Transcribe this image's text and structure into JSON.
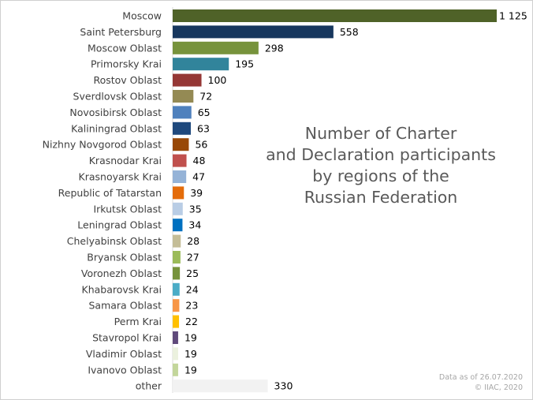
{
  "chart_data": {
    "type": "bar",
    "orientation": "horizontal",
    "title": "Number of Charter and Declaration participants by regions of the Russian Federation",
    "title_lines": [
      "Number of Charter",
      "and Declaration participants",
      "by regions of the",
      "Russian Federation"
    ],
    "categories": [
      "Moscow",
      "Saint Petersburg",
      "Moscow Oblast",
      "Primorsky Krai",
      "Rostov Oblast",
      "Sverdlovsk Oblast",
      "Novosibirsk Oblast",
      "Kaliningrad Oblast",
      "Nizhny Novgorod Oblast",
      "Krasnodar Krai",
      "Krasnoyarsk Krai",
      "Republic of Tatarstan",
      "Irkutsk Oblast",
      "Leningrad Oblast",
      "Chelyabinsk Oblast",
      "Bryansk Oblast",
      "Voronezh Oblast",
      "Khabarovsk Krai",
      "Samara Oblast",
      "Perm Krai",
      "Stavropol Krai",
      "Vladimir Oblast",
      "Ivanovo Oblast",
      "other"
    ],
    "values": [
      1125,
      558,
      298,
      195,
      100,
      72,
      65,
      63,
      56,
      48,
      47,
      39,
      35,
      34,
      28,
      27,
      25,
      24,
      23,
      22,
      19,
      19,
      19,
      330
    ],
    "value_labels": [
      "1 125",
      "558",
      "298",
      "195",
      "100",
      "72",
      "65",
      "63",
      "56",
      "48",
      "47",
      "39",
      "35",
      "34",
      "28",
      "27",
      "25",
      "24",
      "23",
      "22",
      "19",
      "19",
      "19",
      "330"
    ],
    "colors": [
      "#4f6228",
      "#17375e",
      "#77933c",
      "#31849b",
      "#953735",
      "#948a54",
      "#4f81bd",
      "#1f497d",
      "#984807",
      "#c0504d",
      "#95b3d7",
      "#e46c0a",
      "#b9cde5",
      "#0070c0",
      "#c4bd97",
      "#9bbb59",
      "#77933c",
      "#4bacc6",
      "#f79646",
      "#ffc000",
      "#604a7b",
      "#ebf1de",
      "#c3d69b",
      "#f2f2f2"
    ],
    "xlim": [
      0,
      1125
    ],
    "grid": false,
    "legend": "none"
  },
  "footnote": {
    "date_line": "Data as of 26.07.2020",
    "copyright_line": "© IIAC, 2020"
  }
}
